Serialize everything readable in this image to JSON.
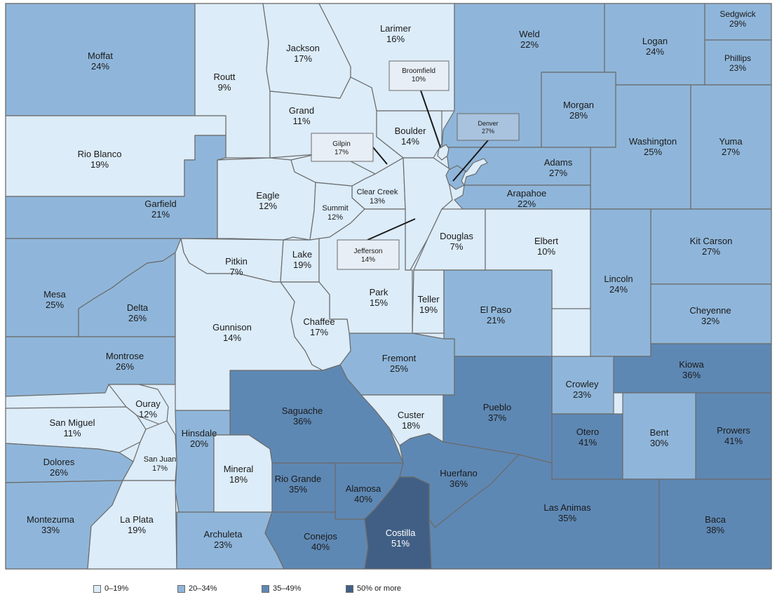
{
  "colors": {
    "bin0": "#dcecf9",
    "bin1": "#8fb6da",
    "bin2": "#5e88b4",
    "bin3": "#415f85",
    "border": "#6b6b6b",
    "callout_bg": "#e8eef5",
    "denver_bg": "#a9c3de"
  },
  "legend": [
    {
      "label": "0–19%",
      "bin": "bin0"
    },
    {
      "label": "20–34%",
      "bin": "bin1"
    },
    {
      "label": "35–49%",
      "bin": "bin2"
    },
    {
      "label": "50% or more",
      "bin": "bin3"
    }
  ],
  "counties": [
    {
      "id": "moffat",
      "name": "Moffat",
      "pct": "24%",
      "bin": "bin1"
    },
    {
      "id": "routt",
      "name": "Routt",
      "pct": "9%",
      "bin": "bin0"
    },
    {
      "id": "jackson",
      "name": "Jackson",
      "pct": "17%",
      "bin": "bin0"
    },
    {
      "id": "larimer",
      "name": "Larimer",
      "pct": "16%",
      "bin": "bin0"
    },
    {
      "id": "weld",
      "name": "Weld",
      "pct": "22%",
      "bin": "bin1"
    },
    {
      "id": "logan",
      "name": "Logan",
      "pct": "24%",
      "bin": "bin1"
    },
    {
      "id": "sedgwick",
      "name": "Sedgwick",
      "pct": "29%",
      "bin": "bin1"
    },
    {
      "id": "phillips",
      "name": "Phillips",
      "pct": "23%",
      "bin": "bin1"
    },
    {
      "id": "rio-blanco",
      "name": "Rio Blanco",
      "pct": "19%",
      "bin": "bin0"
    },
    {
      "id": "grand",
      "name": "Grand",
      "pct": "11%",
      "bin": "bin0"
    },
    {
      "id": "boulder",
      "name": "Boulder",
      "pct": "14%",
      "bin": "bin0"
    },
    {
      "id": "broomfield",
      "name": "Broomfield",
      "pct": "10%",
      "bin": "bin0"
    },
    {
      "id": "morgan",
      "name": "Morgan",
      "pct": "28%",
      "bin": "bin1"
    },
    {
      "id": "washington",
      "name": "Washington",
      "pct": "25%",
      "bin": "bin1"
    },
    {
      "id": "yuma",
      "name": "Yuma",
      "pct": "27%",
      "bin": "bin1"
    },
    {
      "id": "gilpin",
      "name": "Gilpin",
      "pct": "17%",
      "bin": "bin0"
    },
    {
      "id": "denver",
      "name": "Denver",
      "pct": "27%",
      "bin": "bin1"
    },
    {
      "id": "adams",
      "name": "Adams",
      "pct": "27%",
      "bin": "bin1"
    },
    {
      "id": "garfield",
      "name": "Garfield",
      "pct": "21%",
      "bin": "bin1"
    },
    {
      "id": "eagle",
      "name": "Eagle",
      "pct": "12%",
      "bin": "bin0"
    },
    {
      "id": "clear-creek",
      "name": "Clear Creek",
      "pct": "13%",
      "bin": "bin0"
    },
    {
      "id": "summit",
      "name": "Summit",
      "pct": "12%",
      "bin": "bin0"
    },
    {
      "id": "arapahoe",
      "name": "Arapahoe",
      "pct": "22%",
      "bin": "bin1"
    },
    {
      "id": "jefferson",
      "name": "Jefferson",
      "pct": "14%",
      "bin": "bin0"
    },
    {
      "id": "douglas",
      "name": "Douglas",
      "pct": "7%",
      "bin": "bin0"
    },
    {
      "id": "elbert",
      "name": "Elbert",
      "pct": "10%",
      "bin": "bin0"
    },
    {
      "id": "kit-carson",
      "name": "Kit Carson",
      "pct": "27%",
      "bin": "bin1"
    },
    {
      "id": "pitkin",
      "name": "Pitkin",
      "pct": "7%",
      "bin": "bin0"
    },
    {
      "id": "lake",
      "name": "Lake",
      "pct": "19%",
      "bin": "bin0"
    },
    {
      "id": "mesa",
      "name": "Mesa",
      "pct": "25%",
      "bin": "bin1"
    },
    {
      "id": "delta",
      "name": "Delta",
      "pct": "26%",
      "bin": "bin1"
    },
    {
      "id": "park",
      "name": "Park",
      "pct": "15%",
      "bin": "bin0"
    },
    {
      "id": "teller",
      "name": "Teller",
      "pct": "19%",
      "bin": "bin0"
    },
    {
      "id": "lincoln",
      "name": "Lincoln",
      "pct": "24%",
      "bin": "bin1"
    },
    {
      "id": "el-paso",
      "name": "El Paso",
      "pct": "21%",
      "bin": "bin1"
    },
    {
      "id": "cheyenne",
      "name": "Cheyenne",
      "pct": "32%",
      "bin": "bin1"
    },
    {
      "id": "gunnison",
      "name": "Gunnison",
      "pct": "14%",
      "bin": "bin0"
    },
    {
      "id": "chaffee",
      "name": "Chaffee",
      "pct": "17%",
      "bin": "bin0"
    },
    {
      "id": "montrose",
      "name": "Montrose",
      "pct": "26%",
      "bin": "bin1"
    },
    {
      "id": "fremont",
      "name": "Fremont",
      "pct": "25%",
      "bin": "bin1"
    },
    {
      "id": "kiowa",
      "name": "Kiowa",
      "pct": "36%",
      "bin": "bin2"
    },
    {
      "id": "crowley",
      "name": "Crowley",
      "pct": "23%",
      "bin": "bin1"
    },
    {
      "id": "ouray",
      "name": "Ouray",
      "pct": "12%",
      "bin": "bin0"
    },
    {
      "id": "saguache",
      "name": "Saguache",
      "pct": "36%",
      "bin": "bin2"
    },
    {
      "id": "custer",
      "name": "Custer",
      "pct": "18%",
      "bin": "bin0"
    },
    {
      "id": "pueblo",
      "name": "Pueblo",
      "pct": "37%",
      "bin": "bin2"
    },
    {
      "id": "san-miguel",
      "name": "San Miguel",
      "pct": "11%",
      "bin": "bin0"
    },
    {
      "id": "hinsdale",
      "name": "Hinsdale",
      "pct": "20%",
      "bin": "bin1"
    },
    {
      "id": "otero",
      "name": "Otero",
      "pct": "41%",
      "bin": "bin2"
    },
    {
      "id": "bent",
      "name": "Bent",
      "pct": "30%",
      "bin": "bin1"
    },
    {
      "id": "prowers",
      "name": "Prowers",
      "pct": "41%",
      "bin": "bin2"
    },
    {
      "id": "dolores",
      "name": "Dolores",
      "pct": "26%",
      "bin": "bin1"
    },
    {
      "id": "san-juan",
      "name": "San Juan",
      "pct": "17%",
      "bin": "bin0"
    },
    {
      "id": "mineral",
      "name": "Mineral",
      "pct": "18%",
      "bin": "bin0"
    },
    {
      "id": "rio-grande",
      "name": "Rio Grande",
      "pct": "35%",
      "bin": "bin2"
    },
    {
      "id": "alamosa",
      "name": "Alamosa",
      "pct": "40%",
      "bin": "bin2"
    },
    {
      "id": "huerfano",
      "name": "Huerfano",
      "pct": "36%",
      "bin": "bin2"
    },
    {
      "id": "montezuma",
      "name": "Montezuma",
      "pct": "33%",
      "bin": "bin1"
    },
    {
      "id": "la-plata",
      "name": "La Plata",
      "pct": "19%",
      "bin": "bin0"
    },
    {
      "id": "archuleta",
      "name": "Archuleta",
      "pct": "23%",
      "bin": "bin1"
    },
    {
      "id": "conejos",
      "name": "Conejos",
      "pct": "40%",
      "bin": "bin2"
    },
    {
      "id": "costilla",
      "name": "Costilla",
      "pct": "51%",
      "bin": "bin3"
    },
    {
      "id": "las-animas",
      "name": "Las Animas",
      "pct": "35%",
      "bin": "bin2"
    },
    {
      "id": "baca",
      "name": "Baca",
      "pct": "38%",
      "bin": "bin2"
    }
  ]
}
